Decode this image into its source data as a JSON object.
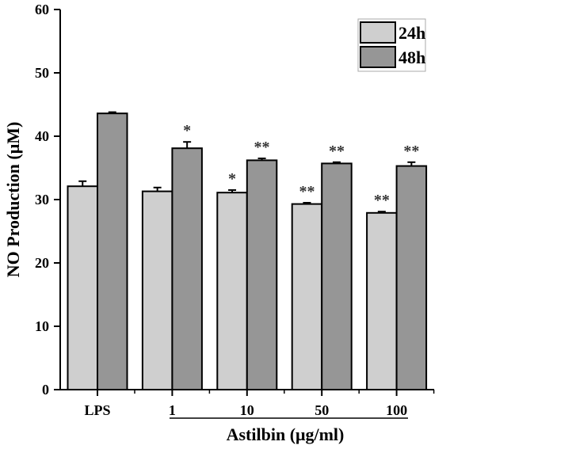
{
  "chart_data": {
    "type": "bar",
    "title": "",
    "xlabel": "Astilbin (μg/ml)",
    "ylabel": "NO Production (μM)",
    "ylim": [
      0,
      60
    ],
    "yticks": [
      "0",
      "10",
      "20",
      "30",
      "40",
      "50",
      "60"
    ],
    "categories": [
      "LPS",
      "1",
      "10",
      "50",
      "100"
    ],
    "series": [
      {
        "name": "24h",
        "color": "#cfcfcf",
        "values": [
          32.1,
          31.3,
          31.1,
          29.3,
          27.9
        ],
        "errors": [
          0.8,
          0.6,
          0.4,
          0.2,
          0.2
        ],
        "annotations": [
          "",
          "",
          "*",
          "**",
          "**"
        ]
      },
      {
        "name": "48h",
        "color": "#969696",
        "values": [
          43.6,
          38.1,
          36.2,
          35.7,
          35.3
        ],
        "errors": [
          0.2,
          1.0,
          0.3,
          0.2,
          0.6
        ],
        "annotations": [
          "",
          "*",
          "**",
          "**",
          "**"
        ]
      }
    ],
    "grid": false,
    "legend": "top-right"
  }
}
